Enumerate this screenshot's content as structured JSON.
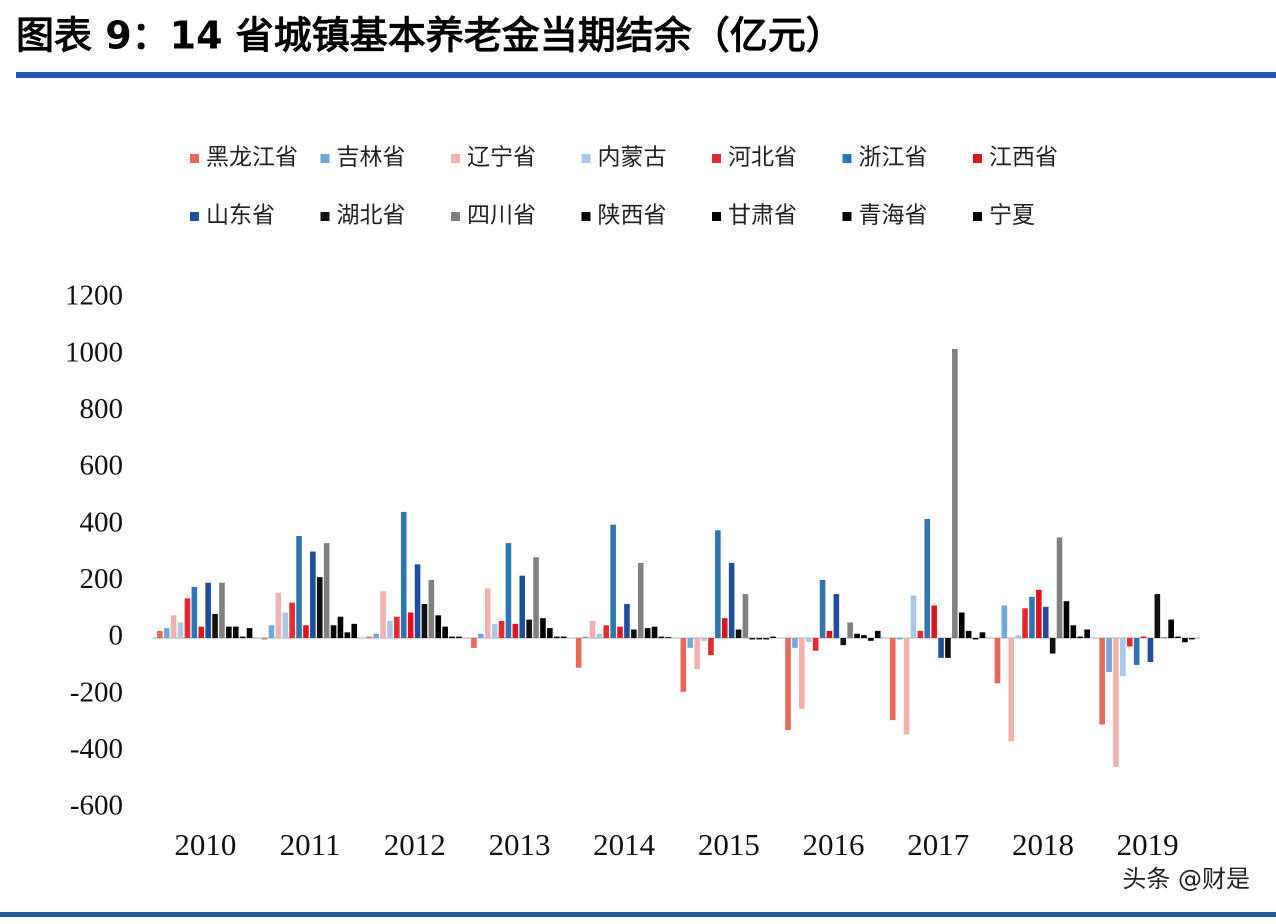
{
  "chart_data": {
    "type": "bar",
    "title": "图表 9：14 省城镇基本养老金当期结余（亿元）",
    "watermark": "头条 @财是",
    "categories": [
      "2010",
      "2011",
      "2012",
      "2013",
      "2014",
      "2015",
      "2016",
      "2017",
      "2018",
      "2019"
    ],
    "ylim": [
      -600,
      1200
    ],
    "yticks": [
      -600,
      -400,
      -200,
      0,
      200,
      400,
      600,
      800,
      1000,
      1200
    ],
    "grid": false,
    "legend": "top",
    "series": [
      {
        "name": "黑龙江省",
        "color": "#e8685a",
        "values": [
          25,
          -5,
          5,
          -35,
          -105,
          -190,
          -325,
          -290,
          -160,
          -305
        ]
      },
      {
        "name": "吉林省",
        "color": "#6fa8dc",
        "values": [
          35,
          45,
          15,
          15,
          5,
          -35,
          -35,
          -5,
          115,
          -120
        ]
      },
      {
        "name": "辽宁省",
        "color": "#f4b0ae",
        "values": [
          80,
          160,
          165,
          175,
          60,
          -110,
          -250,
          -340,
          -365,
          -455
        ]
      },
      {
        "name": "内蒙古",
        "color": "#a9c8e8",
        "values": [
          55,
          90,
          60,
          50,
          15,
          -10,
          -15,
          150,
          10,
          -135
        ]
      },
      {
        "name": "河北省",
        "color": "#e8282a",
        "values": [
          140,
          125,
          75,
          60,
          45,
          -60,
          -45,
          25,
          105,
          -30
        ]
      },
      {
        "name": "浙江省",
        "color": "#2e75b6",
        "values": [
          180,
          360,
          445,
          335,
          400,
          380,
          205,
          420,
          145,
          -95
        ]
      },
      {
        "name": "江西省",
        "color": "#e0141e",
        "values": [
          40,
          45,
          90,
          50,
          40,
          70,
          25,
          115,
          170,
          5
        ]
      },
      {
        "name": "山东省",
        "color": "#1f4e9c",
        "values": [
          195,
          305,
          260,
          220,
          120,
          265,
          155,
          -70,
          110,
          -85
        ]
      },
      {
        "name": "湖北省",
        "color": "#111111",
        "values": [
          85,
          215,
          120,
          65,
          30,
          30,
          -25,
          -70,
          -55,
          155
        ]
      },
      {
        "name": "四川省",
        "color": "#808080",
        "values": [
          195,
          335,
          205,
          285,
          265,
          155,
          55,
          1020,
          355,
          3
        ]
      },
      {
        "name": "陕西省",
        "color": "#000000",
        "values": [
          40,
          45,
          80,
          70,
          35,
          -5,
          15,
          90,
          130,
          65
        ]
      },
      {
        "name": "甘肃省",
        "color": "#000000",
        "values": [
          40,
          75,
          40,
          35,
          40,
          -5,
          10,
          25,
          45,
          5
        ]
      },
      {
        "name": "青海省",
        "color": "#000000",
        "values": [
          5,
          20,
          5,
          5,
          5,
          -5,
          -10,
          -5,
          5,
          -15
        ]
      },
      {
        "name": "宁夏",
        "color": "#000000",
        "values": [
          35,
          50,
          5,
          5,
          3,
          5,
          25,
          20,
          30,
          -5
        ]
      }
    ]
  }
}
